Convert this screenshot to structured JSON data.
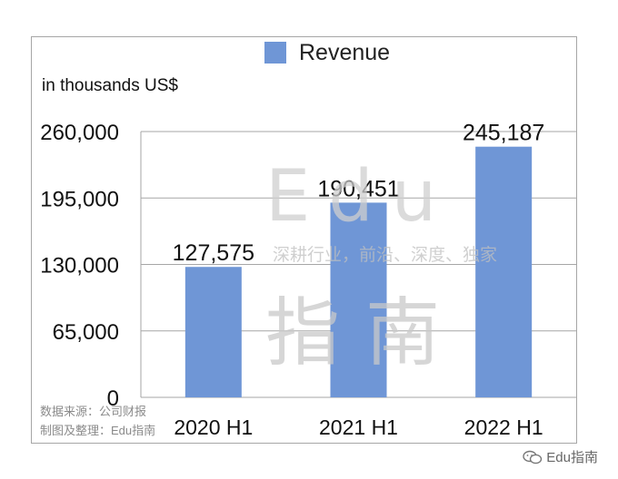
{
  "chart_data": {
    "type": "bar",
    "categories": [
      "2020 H1",
      "2021 H1",
      "2022 H1"
    ],
    "series": [
      {
        "name": "Revenue",
        "values": [
          127575,
          190451,
          245187
        ]
      }
    ],
    "value_labels": [
      "127,575",
      "190,451",
      "245,187"
    ],
    "ylabel": "in thousands US$",
    "ylim": [
      0,
      260000
    ],
    "yticks": [
      0,
      65000,
      130000,
      195000,
      260000
    ],
    "ytick_labels": [
      "0",
      "65,000",
      "130,000",
      "195,000",
      "260,000"
    ],
    "grid": true,
    "legend": "top-center",
    "bar_color": "#6f96d6",
    "grid_color": "#a6a6a6"
  },
  "source_lines": [
    "数据来源：公司财报",
    "制图及整理：Edu指南"
  ],
  "watermark": {
    "edu": "Edu",
    "tagline": "深耕行业，前沿、深度、独家",
    "cn": "指南"
  },
  "brand": {
    "icon": "wechat-icon",
    "label": "Edu指南"
  }
}
